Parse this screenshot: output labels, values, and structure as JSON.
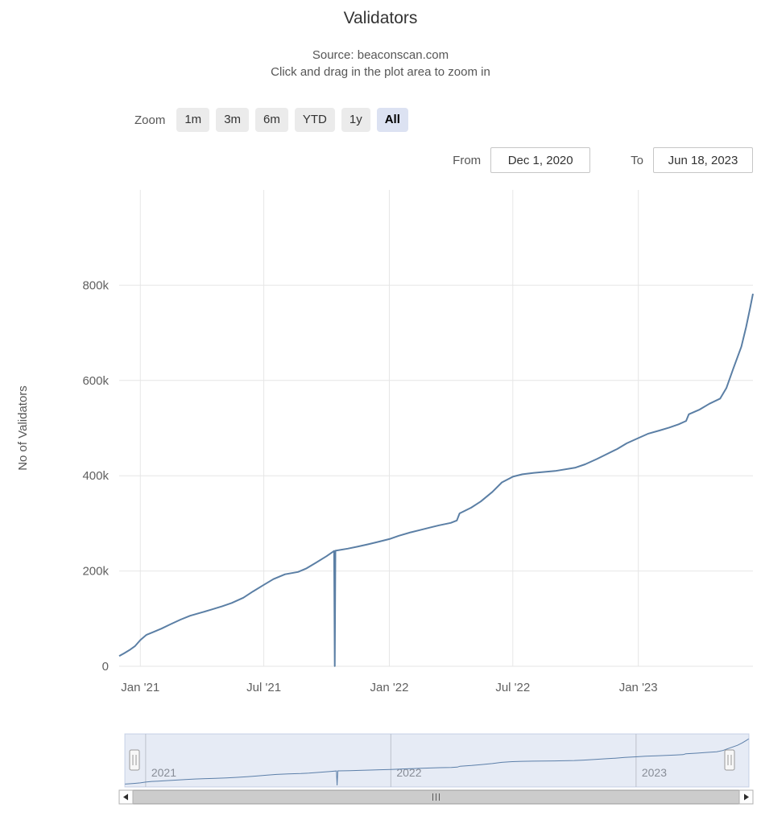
{
  "header": {
    "title": "Validators",
    "subtitle_source": "Source: beaconscan.com",
    "subtitle_hint": "Click and drag in the plot area to zoom in"
  },
  "range_selector": {
    "zoom_label": "Zoom",
    "buttons": [
      {
        "label": "1m",
        "selected": false
      },
      {
        "label": "3m",
        "selected": false
      },
      {
        "label": "6m",
        "selected": false
      },
      {
        "label": "YTD",
        "selected": false
      },
      {
        "label": "1y",
        "selected": false
      },
      {
        "label": "All",
        "selected": true
      }
    ],
    "from_label": "From",
    "from_value": "Dec 1, 2020",
    "to_label": "To",
    "to_value": "Jun 18, 2023"
  },
  "colors": {
    "series": "#5b7fa5",
    "gridline": "#e6e6e6",
    "navigator_mask": "#6685c2",
    "button_bg": "#ebebeb",
    "selected_button_bg": "#dce2f2"
  },
  "chart_data": {
    "type": "line",
    "title": "Validators",
    "source": "beaconscan.com",
    "xlabel": "",
    "ylabel": "No of Validators",
    "xlim": [
      "2020-12-01",
      "2023-06-18"
    ],
    "ylim": [
      0,
      1000000
    ],
    "grid": true,
    "legend": false,
    "yticks": [
      {
        "value": 0,
        "label": "0"
      },
      {
        "value": 200000,
        "label": "200k"
      },
      {
        "value": 400000,
        "label": "400k"
      },
      {
        "value": 600000,
        "label": "600k"
      },
      {
        "value": 800000,
        "label": "800k"
      }
    ],
    "xticks": [
      {
        "date": "2021-01-01",
        "label": "Jan '21"
      },
      {
        "date": "2021-07-01",
        "label": "Jul '21"
      },
      {
        "date": "2022-01-01",
        "label": "Jan '22"
      },
      {
        "date": "2022-07-01",
        "label": "Jul '22"
      },
      {
        "date": "2023-01-01",
        "label": "Jan '23"
      }
    ],
    "series": [
      {
        "name": "Validators",
        "color": "#5b7fa5",
        "points": [
          [
            "2020-12-01",
            21400
          ],
          [
            "2020-12-08",
            27000
          ],
          [
            "2020-12-16",
            34000
          ],
          [
            "2020-12-24",
            42000
          ],
          [
            "2021-01-01",
            55000
          ],
          [
            "2021-01-10",
            66000
          ],
          [
            "2021-01-20",
            72000
          ],
          [
            "2021-02-01",
            79000
          ],
          [
            "2021-02-14",
            88000
          ],
          [
            "2021-03-01",
            98000
          ],
          [
            "2021-03-15",
            106000
          ],
          [
            "2021-04-01",
            113000
          ],
          [
            "2021-04-15",
            119000
          ],
          [
            "2021-05-01",
            126000
          ],
          [
            "2021-05-15",
            133000
          ],
          [
            "2021-06-01",
            144000
          ],
          [
            "2021-06-15",
            157000
          ],
          [
            "2021-07-01",
            171000
          ],
          [
            "2021-07-15",
            183000
          ],
          [
            "2021-08-01",
            193000
          ],
          [
            "2021-08-20",
            198000
          ],
          [
            "2021-09-01",
            205000
          ],
          [
            "2021-09-15",
            217000
          ],
          [
            "2021-10-01",
            231000
          ],
          [
            "2021-10-12",
            242000
          ],
          [
            "2021-10-13",
            500
          ],
          [
            "2021-10-14",
            242500
          ],
          [
            "2021-11-01",
            247000
          ],
          [
            "2021-11-15",
            251000
          ],
          [
            "2021-12-01",
            256000
          ],
          [
            "2021-12-15",
            261000
          ],
          [
            "2022-01-01",
            267000
          ],
          [
            "2022-01-15",
            274000
          ],
          [
            "2022-02-01",
            281000
          ],
          [
            "2022-02-15",
            286000
          ],
          [
            "2022-03-01",
            291000
          ],
          [
            "2022-03-15",
            296000
          ],
          [
            "2022-04-01",
            301000
          ],
          [
            "2022-04-10",
            306000
          ],
          [
            "2022-04-14",
            321000
          ],
          [
            "2022-05-01",
            333000
          ],
          [
            "2022-05-15",
            346000
          ],
          [
            "2022-06-01",
            366000
          ],
          [
            "2022-06-15",
            386000
          ],
          [
            "2022-07-01",
            398000
          ],
          [
            "2022-07-15",
            403000
          ],
          [
            "2022-08-01",
            406000
          ],
          [
            "2022-09-01",
            410000
          ],
          [
            "2022-10-01",
            417000
          ],
          [
            "2022-10-15",
            424000
          ],
          [
            "2022-11-01",
            435000
          ],
          [
            "2022-11-15",
            445000
          ],
          [
            "2022-12-01",
            456000
          ],
          [
            "2022-12-15",
            468000
          ],
          [
            "2023-01-01",
            479000
          ],
          [
            "2023-01-15",
            488000
          ],
          [
            "2023-02-01",
            495000
          ],
          [
            "2023-02-15",
            501000
          ],
          [
            "2023-03-01",
            508000
          ],
          [
            "2023-03-12",
            515000
          ],
          [
            "2023-03-16",
            529000
          ],
          [
            "2023-04-01",
            539000
          ],
          [
            "2023-04-15",
            551000
          ],
          [
            "2023-05-01",
            562000
          ],
          [
            "2023-05-10",
            584000
          ],
          [
            "2023-05-20",
            624000
          ],
          [
            "2023-06-01",
            671000
          ],
          [
            "2023-06-08",
            712000
          ],
          [
            "2023-06-14",
            753000
          ],
          [
            "2023-06-18",
            782000
          ]
        ]
      }
    ],
    "navigator": {
      "year_labels": [
        {
          "date": "2021-01-01",
          "label": "2021"
        },
        {
          "date": "2022-01-01",
          "label": "2022"
        },
        {
          "date": "2023-01-01",
          "label": "2023"
        }
      ]
    }
  }
}
